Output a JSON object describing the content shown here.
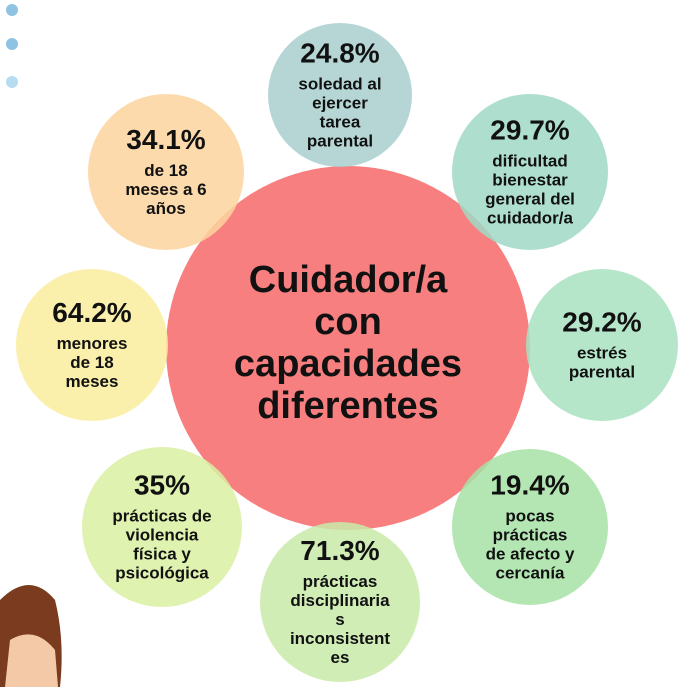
{
  "center": {
    "lines": [
      "Cuidador/a",
      "con",
      "capacidades",
      "diferentes"
    ]
  },
  "nodes": [
    {
      "value": "24.8%",
      "lines": [
        "soledad al",
        "ejercer",
        "tarea",
        "parental"
      ]
    },
    {
      "value": "29.7%",
      "lines": [
        "dificultad",
        "bienestar",
        "general del",
        "cuidador/a"
      ]
    },
    {
      "value": "29.2%",
      "lines": [
        "estrés",
        "parental"
      ]
    },
    {
      "value": "19.4%",
      "lines": [
        "pocas",
        "prácticas",
        "de afecto y",
        "cercanía"
      ]
    },
    {
      "value": "71.3%",
      "lines": [
        "prácticas",
        "disciplinaria",
        "s",
        "inconsistent",
        "es"
      ]
    },
    {
      "value": "35%",
      "lines": [
        "prácticas de",
        "violencia",
        "física y",
        "psicológica"
      ]
    },
    {
      "value": "64.2%",
      "lines": [
        "menores",
        "de 18",
        "meses"
      ]
    },
    {
      "value": "34.1%",
      "lines": [
        "de 18",
        "meses a 6",
        "años"
      ]
    }
  ]
}
